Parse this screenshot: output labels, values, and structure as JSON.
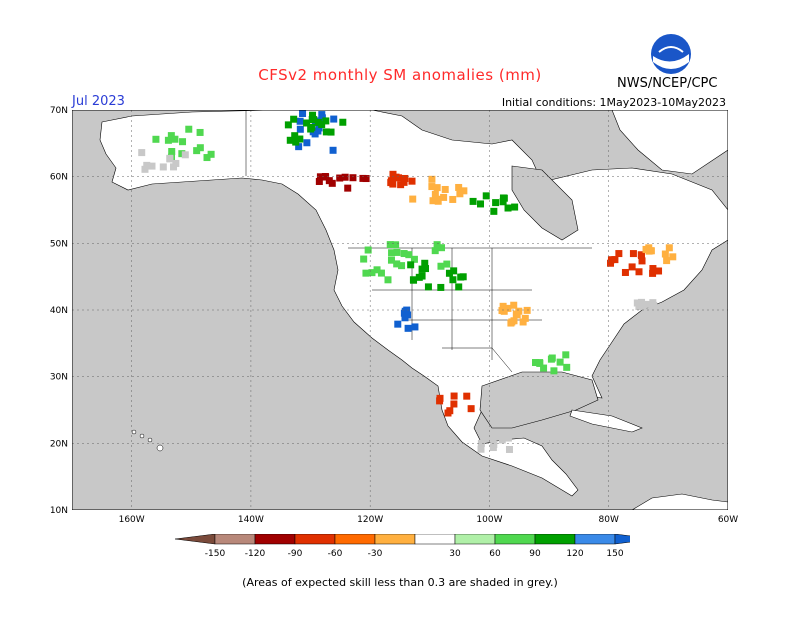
{
  "title": "CFSv2 monthly SM anomalies (mm)",
  "valid_month": "Jul 2023",
  "initial_conditions": "Initial conditions: 1May2023-10May2023",
  "agency": "NWS/NCEP/CPC",
  "logo_text": "NOAA",
  "footnote": "(Areas of expected skill less than 0.3 are shaded in grey.)",
  "map": {
    "lon_range": [
      -170,
      -60
    ],
    "lat_range": [
      10,
      70
    ],
    "lat_labels": [
      "70N",
      "60N",
      "50N",
      "40N",
      "30N",
      "20N",
      "10N"
    ],
    "lat_values": [
      70,
      60,
      50,
      40,
      30,
      20,
      10
    ],
    "lon_labels": [
      "160W",
      "140W",
      "120W",
      "100W",
      "80W",
      "60W"
    ],
    "lon_values": [
      -160,
      -140,
      -120,
      -100,
      -80,
      -60
    ],
    "ocean_color": "#c8c8c8",
    "land_color": "#ffffff",
    "grey_color": "#c8c8c8"
  },
  "colorbar": {
    "tick_labels": [
      "-150",
      "-120",
      "-90",
      "-60",
      "-30",
      "30",
      "60",
      "90",
      "120",
      "150"
    ],
    "colors": [
      "#7a4a3a",
      "#b8887a",
      "#a00000",
      "#e03000",
      "#ff6a00",
      "#ffb040",
      "#ffffff",
      "#b0f0a8",
      "#50d850",
      "#00a000",
      "#3a8ae8",
      "#1060d0"
    ]
  }
}
